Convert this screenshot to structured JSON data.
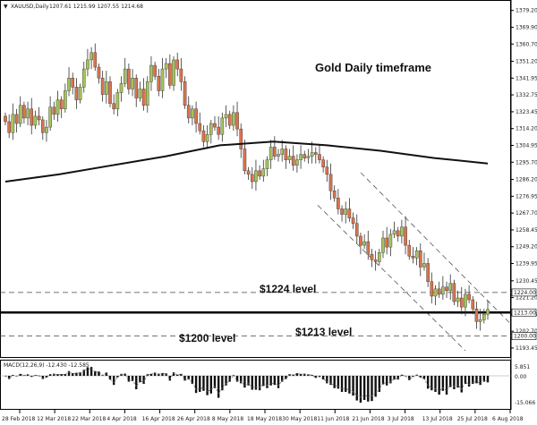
{
  "chart_data": {
    "type": "candlestick",
    "title": "Gold Daily timeframe",
    "header": {
      "marker": "▼",
      "symbol": "XAUUSD,Daily",
      "ohlc": "1207.61 1215.99 1207.55 1214.68"
    },
    "price_axis": {
      "min": 1189,
      "max": 1382,
      "ticks": [
        "1379.20",
        "1369.90",
        "1360.70",
        "1351.20",
        "1341.95",
        "1332.75",
        "1323.45",
        "1314.20",
        "1304.95",
        "1295.70",
        "1286.20",
        "1276.95",
        "1267.70",
        "1258.45",
        "1249.20",
        "1239.95",
        "1230.45",
        "1221.20",
        "1211.95",
        "1202.70",
        "1193.45"
      ],
      "badges": [
        {
          "text": "1224.00",
          "value": 1224.0
        },
        {
          "text": "1213.00",
          "value": 1213.0
        },
        {
          "text": "1200.00",
          "value": 1200.0
        }
      ]
    },
    "date_axis": {
      "labels": [
        "28 Feb 2018",
        "12 Mar 2018",
        "22 Mar 2018",
        "4 Apr 2018",
        "16 Apr 2018",
        "26 Apr 2018",
        "8 May 2018",
        "18 May 2018",
        "30 May 2018",
        "11 Jun 2018",
        "21 Jun 2018",
        "3 Jul 2018",
        "13 Jul 2018",
        "25 Jul 2018",
        "6 Aug 2018"
      ]
    },
    "candles_close": [
      1318,
      1312,
      1322,
      1317,
      1327,
      1320,
      1325,
      1316,
      1321,
      1319,
      1312,
      1315,
      1326,
      1322,
      1330,
      1325,
      1335,
      1342,
      1337,
      1330,
      1337,
      1347,
      1352,
      1356,
      1348,
      1342,
      1333,
      1340,
      1328,
      1325,
      1334,
      1339,
      1347,
      1336,
      1342,
      1331,
      1336,
      1327,
      1340,
      1349,
      1343,
      1335,
      1347,
      1350,
      1338,
      1352,
      1347,
      1340,
      1327,
      1320,
      1325,
      1317,
      1313,
      1307,
      1311,
      1317,
      1315,
      1311,
      1320,
      1322,
      1316,
      1323,
      1314,
      1303,
      1291,
      1289,
      1285,
      1291,
      1288,
      1292,
      1297,
      1304,
      1299,
      1300,
      1303,
      1297,
      1299,
      1294,
      1297,
      1300,
      1298,
      1299,
      1301,
      1300,
      1297,
      1293,
      1289,
      1280,
      1276,
      1270,
      1267,
      1270,
      1265,
      1262,
      1255,
      1250,
      1252,
      1245,
      1242,
      1241,
      1246,
      1254,
      1249,
      1256,
      1258,
      1255,
      1260,
      1250,
      1244,
      1243,
      1247,
      1238,
      1240,
      1230,
      1222,
      1226,
      1223,
      1227,
      1225,
      1229,
      1219,
      1221,
      1216,
      1223,
      1220,
      1215,
      1208,
      1209,
      1212,
      1214.68
    ],
    "moving_average": {
      "start_value": 1285,
      "points": [
        [
          0,
          1285
        ],
        [
          20,
          1289
        ],
        [
          40,
          1294
        ],
        [
          60,
          1299
        ],
        [
          80,
          1305
        ],
        [
          100,
          1307
        ],
        [
          120,
          1305
        ],
        [
          140,
          1302
        ],
        [
          160,
          1298
        ],
        [
          180,
          1295
        ]
      ]
    },
    "levels": [
      {
        "value": 1224,
        "style": "dashed"
      },
      {
        "value": 1213,
        "style": "solid-thick"
      },
      {
        "value": 1200,
        "style": "dashed"
      }
    ],
    "annotations": {
      "level_1224": "$1224 level",
      "level_1213": "$1213 level",
      "level_1200": "$1200 level"
    },
    "macd": {
      "label": "MACD(12,26,9) -12.430 -12.585",
      "ticks": [
        "5.851",
        "0.00",
        "-15.066"
      ],
      "histogram_note": "oscillator"
    }
  }
}
